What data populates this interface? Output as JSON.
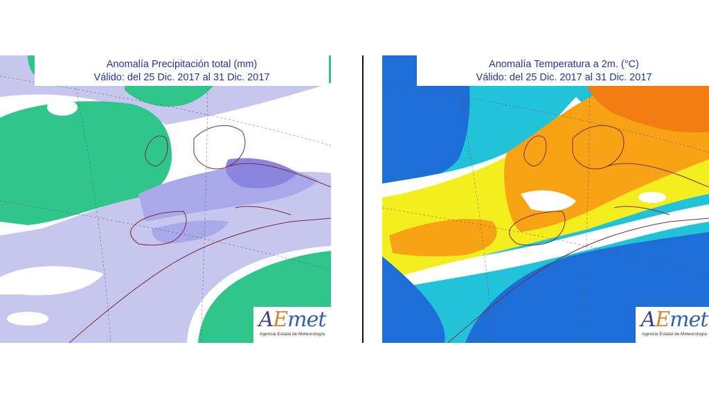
{
  "maps": {
    "left": {
      "title_line1": "Anomalía Precipitación total (mm)",
      "title_line2": "Válido: del 25 Dic. 2017 al 31 Dic. 2017",
      "palette": {
        "wet": "#2fc58b",
        "dry_light": "#c6c6ee",
        "dry_mid": "#a9a8e9",
        "dry_strong": "#8b86dd",
        "neutral": "#ffffff"
      }
    },
    "right": {
      "title_line1": "Anomalía Temperatura a 2m. (°C)",
      "title_line2": "Válido: del 25 Dic. 2017 al 31 Dic. 2017",
      "palette": {
        "cold_strong": "#1e6ed8",
        "cold": "#22c2d9",
        "neutral": "#ffffff",
        "warm": "#f5ee1e",
        "warmer": "#f7a315",
        "hot": "#f47d12"
      }
    }
  },
  "logo": {
    "mark_a": "A",
    "mark_e": "E",
    "mark_met": "met",
    "subtitle": "Agencia Estatal de Meteorología"
  },
  "icons": {
    "coastline": "coastline-lines",
    "graticule": "graticule-dashed-lines"
  }
}
